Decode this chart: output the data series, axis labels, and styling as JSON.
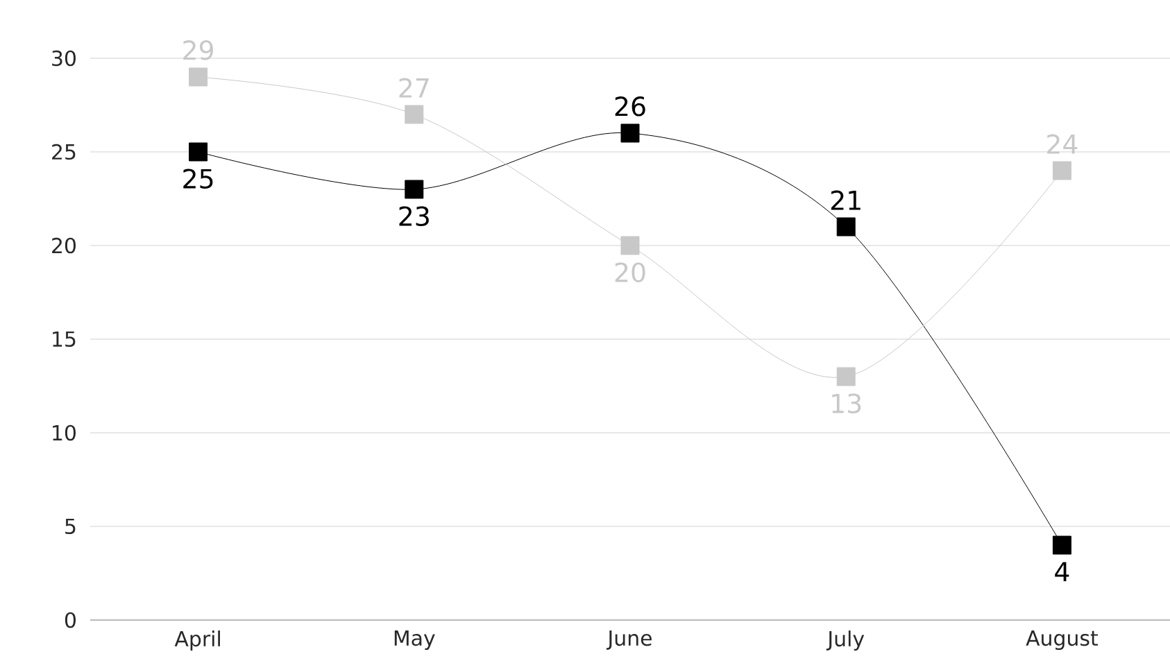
{
  "chart_data": {
    "type": "line",
    "categories": [
      "April",
      "May",
      "June",
      "July",
      "August"
    ],
    "series": [
      {
        "color": "#000000",
        "values": [
          25,
          23,
          26,
          21,
          4
        ]
      },
      {
        "color": "#c8c8c8",
        "values": [
          29,
          27,
          20,
          13,
          24
        ]
      }
    ],
    "ylim": [
      0,
      30
    ],
    "yticks": [
      0,
      5,
      10,
      15,
      20,
      25,
      30
    ],
    "grid": "y",
    "marker": "square",
    "line_style": "solid",
    "data_labels": true
  }
}
